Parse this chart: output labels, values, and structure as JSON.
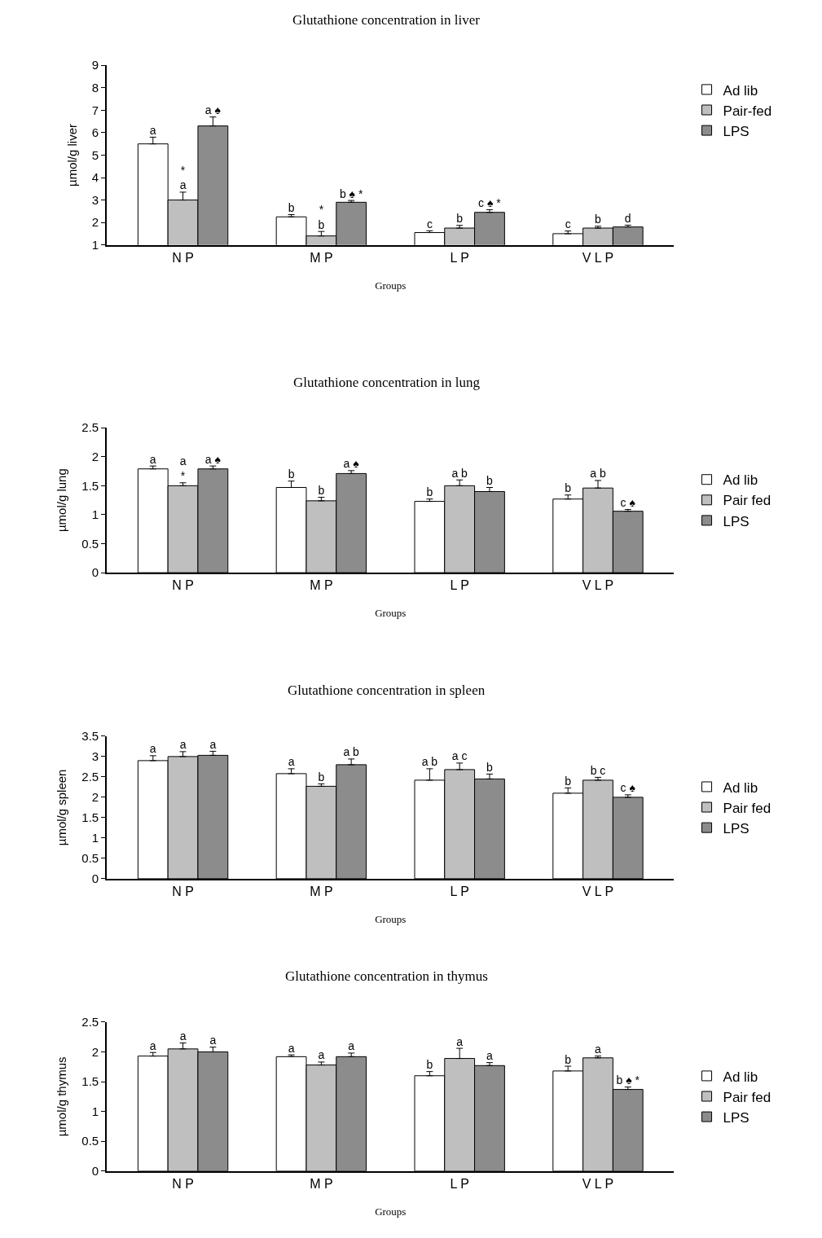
{
  "chart_data": [
    {
      "type": "bar",
      "title": "Glutathione concentration in liver",
      "xlabel": "Groups",
      "ylabel": "µmol/g liver",
      "categories": [
        "N P",
        "M P",
        "L P",
        "V L P"
      ],
      "ylim": [
        1,
        9
      ],
      "yticks": [
        1,
        2,
        3,
        4,
        5,
        6,
        7,
        8,
        9
      ],
      "legend": "right",
      "series": [
        {
          "name": "Ad lib",
          "color": "#ffffff",
          "values": [
            5.5,
            2.25,
            1.55,
            1.5
          ],
          "errors": [
            0.3,
            0.1,
            0.08,
            0.12
          ],
          "value_labels": [
            "a",
            "b",
            "c",
            "c"
          ]
        },
        {
          "name": "Pair-fed",
          "color": "#bfbfbf",
          "values": [
            3.0,
            1.4,
            1.75,
            1.75
          ],
          "errors": [
            0.35,
            0.2,
            0.12,
            0.08
          ],
          "value_labels": [
            "*\na",
            "*\nb",
            "b",
            "b"
          ]
        },
        {
          "name": "LPS",
          "color": "#8c8c8c",
          "values": [
            6.3,
            2.9,
            2.45,
            1.8
          ],
          "errors": [
            0.4,
            0.08,
            0.12,
            0.08
          ],
          "value_labels": [
            "a ♠",
            "b ♠ *",
            "c ♠ *",
            "d"
          ]
        }
      ]
    },
    {
      "type": "bar",
      "title": "Glutathione concentration in lung",
      "xlabel": "Groups",
      "ylabel": "µmol/g lung",
      "categories": [
        "N P",
        "M P",
        "L P",
        "V L P"
      ],
      "ylim": [
        0,
        2.5
      ],
      "yticks": [
        0,
        0.5,
        1,
        1.5,
        2,
        2.5
      ],
      "legend": "right",
      "series": [
        {
          "name": "Ad lib",
          "color": "#ffffff",
          "values": [
            1.79,
            1.47,
            1.23,
            1.27
          ],
          "errors": [
            0.05,
            0.11,
            0.04,
            0.07
          ],
          "value_labels": [
            "a",
            "b",
            "b",
            "b"
          ]
        },
        {
          "name": "Pair fed",
          "color": "#bfbfbf",
          "values": [
            1.5,
            1.24,
            1.5,
            1.46
          ],
          "errors": [
            0.05,
            0.06,
            0.1,
            0.13
          ],
          "value_labels": [
            "a\n*",
            "b",
            "a b",
            "a b"
          ]
        },
        {
          "name": "LPS",
          "color": "#8c8c8c",
          "values": [
            1.79,
            1.71,
            1.4,
            1.06
          ],
          "errors": [
            0.05,
            0.05,
            0.07,
            0.03
          ],
          "value_labels": [
            "a ♠",
            "a ♠",
            "b",
            "c ♠"
          ]
        }
      ]
    },
    {
      "type": "bar",
      "title": "Glutathione concentration in spleen",
      "xlabel": "Groups",
      "ylabel": "µmol/g spleen",
      "categories": [
        "N P",
        "M P",
        "L P",
        "V L P"
      ],
      "ylim": [
        0,
        3.5
      ],
      "yticks": [
        0,
        0.5,
        1,
        1.5,
        2,
        2.5,
        3,
        3.5
      ],
      "legend": "right",
      "series": [
        {
          "name": "Ad lib",
          "color": "#ffffff",
          "values": [
            2.9,
            2.58,
            2.42,
            2.1
          ],
          "errors": [
            0.12,
            0.12,
            0.28,
            0.13
          ],
          "value_labels": [
            "a",
            "a",
            "a b",
            "b"
          ]
        },
        {
          "name": "Pair fed",
          "color": "#bfbfbf",
          "values": [
            3.0,
            2.27,
            2.68,
            2.42
          ],
          "errors": [
            0.12,
            0.06,
            0.16,
            0.07
          ],
          "value_labels": [
            "a",
            "b",
            "a c",
            "b c"
          ]
        },
        {
          "name": "LPS",
          "color": "#8c8c8c",
          "values": [
            3.03,
            2.8,
            2.45,
            2.0
          ],
          "errors": [
            0.1,
            0.14,
            0.12,
            0.06
          ],
          "value_labels": [
            "a",
            "a b",
            "b",
            "c ♠"
          ]
        }
      ]
    },
    {
      "type": "bar",
      "title": "Glutathione concentration in thymus",
      "xlabel": "Groups",
      "ylabel": "µmol/g thymus",
      "categories": [
        "N P",
        "M P",
        "L P",
        "V L P"
      ],
      "ylim": [
        0,
        2.5
      ],
      "yticks": [
        0,
        0.5,
        1,
        1.5,
        2,
        2.5
      ],
      "legend": "right",
      "series": [
        {
          "name": "Ad lib",
          "color": "#ffffff",
          "values": [
            1.93,
            1.92,
            1.6,
            1.68
          ],
          "errors": [
            0.06,
            0.03,
            0.07,
            0.08
          ],
          "value_labels": [
            "a",
            "a",
            "b",
            "b"
          ]
        },
        {
          "name": "Pair fed",
          "color": "#bfbfbf",
          "values": [
            2.05,
            1.78,
            1.89,
            1.9
          ],
          "errors": [
            0.1,
            0.05,
            0.17,
            0.03
          ],
          "value_labels": [
            "a",
            "a",
            "a",
            "a"
          ]
        },
        {
          "name": "LPS",
          "color": "#8c8c8c",
          "values": [
            2.0,
            1.92,
            1.77,
            1.37
          ],
          "errors": [
            0.08,
            0.06,
            0.05,
            0.04
          ],
          "value_labels": [
            "a",
            "a",
            "a",
            "b ♠ *"
          ]
        }
      ]
    }
  ]
}
